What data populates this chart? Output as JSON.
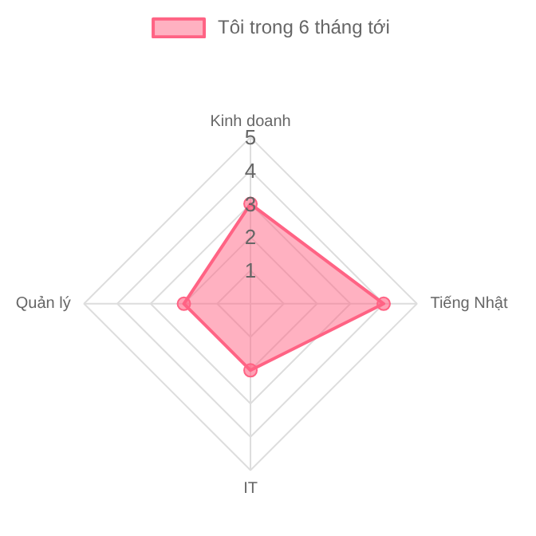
{
  "chart_data": {
    "type": "radar",
    "categories": [
      "Kinh doanh",
      "Tiếng Nhật",
      "IT",
      "Quản lý"
    ],
    "series": [
      {
        "name": "Tôi trong 6 tháng tới",
        "color": "#ff6384",
        "values": [
          3,
          4,
          2,
          2
        ]
      }
    ],
    "ylim": [
      0,
      5
    ],
    "yticks": [
      1,
      2,
      3,
      4,
      5
    ],
    "grid": true,
    "legend": "top",
    "marker": "circle"
  }
}
